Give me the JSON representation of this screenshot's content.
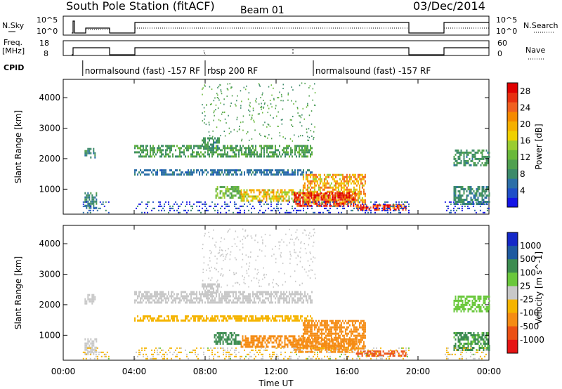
{
  "header": {
    "station": "South Pole Station (fitACF)",
    "beam": "Beam 01",
    "date": "03/Dec/2014"
  },
  "top_panel": {
    "nsky_label": "N.Sky",
    "nsearch_label": "N.Search",
    "nsky_ticks": [
      "10^5",
      "10^0"
    ],
    "nsearch_ticks": [
      "10^5",
      "10^0"
    ]
  },
  "freq_panel": {
    "freq_label_1": "Freq.",
    "freq_label_2": "[MHz]",
    "freq_ticks": [
      "18",
      "8"
    ],
    "nave_label": "Nave",
    "nave_ticks": [
      "60",
      "0"
    ]
  },
  "cpid": {
    "label": "CPID",
    "segments": [
      {
        "text": "normalsound (fast) -157 RF",
        "start_hour": 1.1
      },
      {
        "text": "rbsp 200 RF",
        "start_hour": 8.0
      },
      {
        "text": "normalsound (fast) -157 RF",
        "start_hour": 14.1
      }
    ]
  },
  "chart_data": [
    {
      "type": "heatmap",
      "title": "",
      "xlabel": "Time UT",
      "ylabel": "Slant Range [km]",
      "x_ticks": [
        "00:00",
        "04:00",
        "08:00",
        "12:00",
        "16:00",
        "20:00",
        "00:00"
      ],
      "xlim": [
        0,
        24
      ],
      "y_ticks": [
        1000,
        2000,
        3000,
        4000
      ],
      "ylim": [
        180,
        4600
      ],
      "colorbar": {
        "label": "Power [dB]",
        "ticks": [
          4,
          8,
          12,
          16,
          20,
          24,
          28
        ],
        "range": [
          0,
          30
        ],
        "colors": [
          "#1414e6",
          "#1f4fc8",
          "#2c6fa8",
          "#3c8a6a",
          "#50a050",
          "#6ab93a",
          "#9acd32",
          "#f0d000",
          "#f5b000",
          "#f58a00",
          "#f06020",
          "#e83010",
          "#e00000"
        ]
      },
      "data_periods_hours": [
        [
          1.1,
          2.6
        ],
        [
          4.0,
          19.5
        ],
        [
          21.5,
          24.0
        ]
      ],
      "echo_bands": [
        {
          "x": [
            4.0,
            14.0
          ],
          "y": [
            2050,
            2450
          ],
          "value": 10
        },
        {
          "x": [
            7.8,
            8.8
          ],
          "y": [
            2300,
            2700
          ],
          "value": 9
        },
        {
          "x": [
            1.2,
            1.8
          ],
          "y": [
            2050,
            2350
          ],
          "value": 8
        },
        {
          "x": [
            22.0,
            24.0
          ],
          "y": [
            1800,
            2300
          ],
          "value": 9
        },
        {
          "x": [
            4.0,
            14.0
          ],
          "y": [
            1450,
            1650
          ],
          "value": 6
        },
        {
          "x": [
            8.5,
            10.0
          ],
          "y": [
            700,
            1100
          ],
          "value": 12
        },
        {
          "x": [
            10.0,
            13.5
          ],
          "y": [
            600,
            1000
          ],
          "value": 18
        },
        {
          "x": [
            13.5,
            17.0
          ],
          "y": [
            550,
            1500
          ],
          "value": 20
        },
        {
          "x": [
            13.0,
            16.5
          ],
          "y": [
            450,
            900
          ],
          "value": 27
        },
        {
          "x": [
            16.5,
            19.3
          ],
          "y": [
            300,
            500
          ],
          "value": 28
        },
        {
          "x": [
            1.2,
            1.9
          ],
          "y": [
            400,
            900
          ],
          "value": 8
        },
        {
          "x": [
            22.0,
            24.0
          ],
          "y": [
            500,
            1100
          ],
          "value": 8
        }
      ]
    },
    {
      "type": "heatmap",
      "title": "",
      "xlabel": "Time UT",
      "ylabel": "Slant Range [km]",
      "x_ticks": [
        "00:00",
        "04:00",
        "08:00",
        "12:00",
        "16:00",
        "20:00",
        "00:00"
      ],
      "xlim": [
        0,
        24
      ],
      "y_ticks": [
        1000,
        2000,
        3000,
        4000
      ],
      "ylim": [
        180,
        4600
      ],
      "colorbar": {
        "label": "Velocity [m s^-1]",
        "ticks": [
          1000,
          500,
          100,
          25,
          -25,
          -100,
          -500,
          -1000
        ],
        "colors": [
          "#1428c8",
          "#1e5aa0",
          "#3c8c50",
          "#6ac83c",
          "#c8c8c8",
          "#f5b400",
          "#f58c14",
          "#eb5014",
          "#e61414"
        ]
      },
      "data_periods_hours": [
        [
          1.1,
          2.6
        ],
        [
          4.0,
          19.5
        ],
        [
          21.5,
          24.0
        ]
      ],
      "echo_bands": [
        {
          "x": [
            4.0,
            14.0
          ],
          "y": [
            2050,
            2450
          ],
          "value": 0
        },
        {
          "x": [
            7.8,
            8.8
          ],
          "y": [
            2300,
            2700
          ],
          "value": 0
        },
        {
          "x": [
            1.2,
            1.8
          ],
          "y": [
            2050,
            2350
          ],
          "value": 0
        },
        {
          "x": [
            22.0,
            24.0
          ],
          "y": [
            1800,
            2300
          ],
          "value": 50
        },
        {
          "x": [
            4.0,
            14.0
          ],
          "y": [
            1450,
            1650
          ],
          "value": -60
        },
        {
          "x": [
            8.5,
            10.0
          ],
          "y": [
            700,
            1100
          ],
          "value": 150
        },
        {
          "x": [
            10.0,
            13.5
          ],
          "y": [
            600,
            1000
          ],
          "value": -200
        },
        {
          "x": [
            13.5,
            17.0
          ],
          "y": [
            550,
            1500
          ],
          "value": -400
        },
        {
          "x": [
            13.0,
            16.5
          ],
          "y": [
            450,
            900
          ],
          "value": -300
        },
        {
          "x": [
            16.5,
            19.3
          ],
          "y": [
            300,
            500
          ],
          "value": -700
        },
        {
          "x": [
            1.2,
            1.9
          ],
          "y": [
            400,
            900
          ],
          "value": 0
        },
        {
          "x": [
            22.0,
            24.0
          ],
          "y": [
            500,
            1100
          ],
          "value": 120
        }
      ]
    }
  ]
}
